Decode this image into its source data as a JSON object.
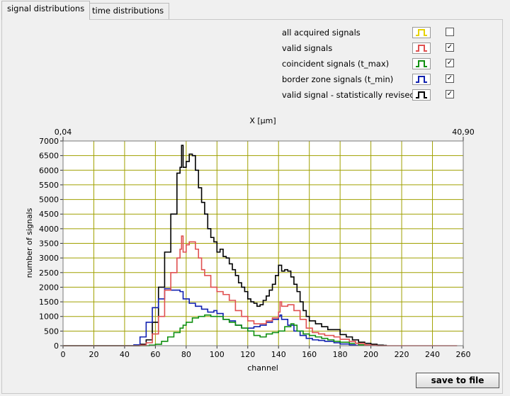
{
  "tabs": [
    {
      "label": "signal distributions",
      "active": true
    },
    {
      "label": "time distributions",
      "active": false
    }
  ],
  "legend": [
    {
      "label": "all acquired signals",
      "color": "#e6d200",
      "checked": false
    },
    {
      "label": "valid signals",
      "color": "#e05050",
      "checked": true
    },
    {
      "label": "coincident signals (t_max)",
      "color": "#109010",
      "checked": true
    },
    {
      "label": "border zone signals (t_min)",
      "color": "#1020b0",
      "checked": true
    },
    {
      "label": "valid signal - statistically revised",
      "color": "#000000",
      "checked": true
    }
  ],
  "save_label": "save to file",
  "chart_data": {
    "type": "line",
    "step": true,
    "xlabel": "channel",
    "ylabel": "number of signals",
    "top_axis": {
      "label": "X [µm]",
      "min_label": "0,04",
      "max_label": "40,90"
    },
    "xlim": [
      0,
      260
    ],
    "ylim": [
      0,
      7000
    ],
    "grid": true,
    "grid_color": "#a0a000",
    "xticks": [
      0,
      20,
      40,
      60,
      80,
      100,
      120,
      140,
      160,
      180,
      200,
      220,
      240,
      260
    ],
    "yticks": [
      0,
      500,
      1000,
      1500,
      2000,
      2500,
      3000,
      3500,
      4000,
      4500,
      5000,
      5500,
      6000,
      6500,
      7000
    ],
    "series": [
      {
        "name": "valid signal - statistically revised",
        "color": "#000000",
        "points": [
          [
            0,
            0
          ],
          [
            50,
            50
          ],
          [
            54,
            200
          ],
          [
            58,
            800
          ],
          [
            62,
            2000
          ],
          [
            66,
            3200
          ],
          [
            70,
            4500
          ],
          [
            74,
            5900
          ],
          [
            76,
            6100
          ],
          [
            77,
            6850
          ],
          [
            78,
            6100
          ],
          [
            80,
            6300
          ],
          [
            82,
            6550
          ],
          [
            84,
            6500
          ],
          [
            86,
            6000
          ],
          [
            88,
            5400
          ],
          [
            90,
            4900
          ],
          [
            92,
            4500
          ],
          [
            94,
            4000
          ],
          [
            96,
            3700
          ],
          [
            98,
            3550
          ],
          [
            100,
            3200
          ],
          [
            102,
            3300
          ],
          [
            104,
            3050
          ],
          [
            106,
            3000
          ],
          [
            108,
            2800
          ],
          [
            110,
            2600
          ],
          [
            112,
            2400
          ],
          [
            114,
            2150
          ],
          [
            116,
            2000
          ],
          [
            118,
            1850
          ],
          [
            120,
            1600
          ],
          [
            122,
            1500
          ],
          [
            124,
            1450
          ],
          [
            126,
            1350
          ],
          [
            128,
            1400
          ],
          [
            130,
            1550
          ],
          [
            132,
            1700
          ],
          [
            134,
            1900
          ],
          [
            136,
            2100
          ],
          [
            138,
            2400
          ],
          [
            140,
            2750
          ],
          [
            142,
            2550
          ],
          [
            144,
            2600
          ],
          [
            146,
            2550
          ],
          [
            148,
            2350
          ],
          [
            150,
            2100
          ],
          [
            152,
            1850
          ],
          [
            154,
            1500
          ],
          [
            156,
            1200
          ],
          [
            158,
            1000
          ],
          [
            160,
            850
          ],
          [
            164,
            750
          ],
          [
            168,
            650
          ],
          [
            172,
            550
          ],
          [
            176,
            550
          ],
          [
            180,
            380
          ],
          [
            184,
            300
          ],
          [
            188,
            200
          ],
          [
            192,
            120
          ],
          [
            196,
            80
          ],
          [
            200,
            50
          ],
          [
            204,
            20
          ],
          [
            208,
            10
          ],
          [
            210,
            0
          ]
        ]
      },
      {
        "name": "border zone signals (t_min)",
        "color": "#1020b0",
        "points": [
          [
            0,
            0
          ],
          [
            46,
            30
          ],
          [
            50,
            300
          ],
          [
            54,
            800
          ],
          [
            58,
            1300
          ],
          [
            62,
            1600
          ],
          [
            66,
            1950
          ],
          [
            70,
            1900
          ],
          [
            76,
            1850
          ],
          [
            78,
            1600
          ],
          [
            82,
            1450
          ],
          [
            86,
            1350
          ],
          [
            90,
            1250
          ],
          [
            94,
            1150
          ],
          [
            98,
            1200
          ],
          [
            100,
            1100
          ],
          [
            104,
            900
          ],
          [
            108,
            850
          ],
          [
            112,
            700
          ],
          [
            116,
            600
          ],
          [
            120,
            600
          ],
          [
            124,
            650
          ],
          [
            128,
            700
          ],
          [
            132,
            800
          ],
          [
            136,
            900
          ],
          [
            140,
            1000
          ],
          [
            141,
            1050
          ],
          [
            142,
            900
          ],
          [
            146,
            700
          ],
          [
            150,
            500
          ],
          [
            154,
            350
          ],
          [
            158,
            250
          ],
          [
            162,
            200
          ],
          [
            166,
            180
          ],
          [
            170,
            150
          ],
          [
            176,
            100
          ],
          [
            180,
            60
          ],
          [
            186,
            30
          ],
          [
            190,
            10
          ],
          [
            194,
            0
          ]
        ]
      },
      {
        "name": "coincident signals (t_max)",
        "color": "#109010",
        "points": [
          [
            0,
            0
          ],
          [
            56,
            20
          ],
          [
            60,
            50
          ],
          [
            64,
            150
          ],
          [
            68,
            300
          ],
          [
            72,
            450
          ],
          [
            76,
            600
          ],
          [
            78,
            700
          ],
          [
            80,
            800
          ],
          [
            84,
            950
          ],
          [
            88,
            1000
          ],
          [
            92,
            1050
          ],
          [
            96,
            1000
          ],
          [
            100,
            1000
          ],
          [
            104,
            900
          ],
          [
            108,
            800
          ],
          [
            112,
            700
          ],
          [
            116,
            600
          ],
          [
            120,
            500
          ],
          [
            124,
            350
          ],
          [
            128,
            300
          ],
          [
            132,
            400
          ],
          [
            136,
            450
          ],
          [
            140,
            500
          ],
          [
            144,
            650
          ],
          [
            148,
            750
          ],
          [
            150,
            700
          ],
          [
            152,
            500
          ],
          [
            156,
            400
          ],
          [
            160,
            350
          ],
          [
            164,
            300
          ],
          [
            168,
            250
          ],
          [
            172,
            200
          ],
          [
            176,
            150
          ],
          [
            180,
            120
          ],
          [
            186,
            80
          ],
          [
            192,
            30
          ],
          [
            196,
            10
          ],
          [
            200,
            0
          ]
        ]
      },
      {
        "name": "valid signals",
        "color": "#e05050",
        "points": [
          [
            0,
            0
          ],
          [
            50,
            20
          ],
          [
            54,
            100
          ],
          [
            58,
            400
          ],
          [
            62,
            1000
          ],
          [
            66,
            1900
          ],
          [
            70,
            2500
          ],
          [
            74,
            3000
          ],
          [
            76,
            3300
          ],
          [
            77,
            3750
          ],
          [
            78,
            3200
          ],
          [
            80,
            3450
          ],
          [
            82,
            3550
          ],
          [
            84,
            3550
          ],
          [
            86,
            3300
          ],
          [
            88,
            3000
          ],
          [
            90,
            2600
          ],
          [
            92,
            2400
          ],
          [
            96,
            2000
          ],
          [
            100,
            1850
          ],
          [
            104,
            1750
          ],
          [
            108,
            1550
          ],
          [
            112,
            1200
          ],
          [
            116,
            1000
          ],
          [
            120,
            850
          ],
          [
            124,
            750
          ],
          [
            128,
            750
          ],
          [
            132,
            850
          ],
          [
            136,
            950
          ],
          [
            140,
            1150
          ],
          [
            141,
            1500
          ],
          [
            142,
            1350
          ],
          [
            146,
            1400
          ],
          [
            150,
            1200
          ],
          [
            154,
            900
          ],
          [
            158,
            600
          ],
          [
            162,
            450
          ],
          [
            166,
            400
          ],
          [
            170,
            350
          ],
          [
            176,
            300
          ],
          [
            180,
            220
          ],
          [
            186,
            150
          ],
          [
            190,
            80
          ],
          [
            196,
            30
          ],
          [
            200,
            10
          ],
          [
            204,
            0
          ],
          [
            256,
            0
          ]
        ]
      }
    ]
  }
}
